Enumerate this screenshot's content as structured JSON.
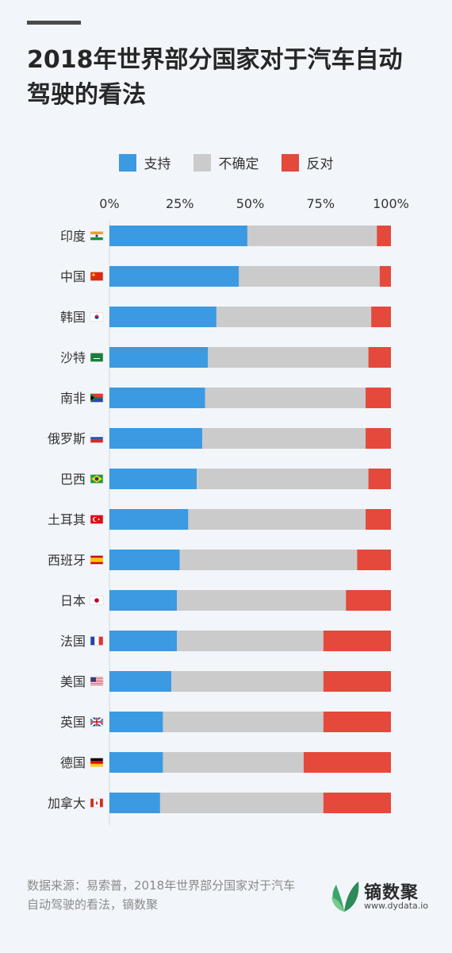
{
  "title": "2018年世界部分国家对于汽车自动驾驶的看法",
  "legend": [
    {
      "label": "支持",
      "color": "#3b9ae1"
    },
    {
      "label": "不确定",
      "color": "#cbcbcb"
    },
    {
      "label": "反对",
      "color": "#e4493c"
    }
  ],
  "chart_data": {
    "type": "bar",
    "orientation": "horizontal",
    "stacked": true,
    "x_ticks": [
      "0%",
      "25%",
      "50%",
      "75%",
      "100%"
    ],
    "xlim": [
      0,
      100
    ],
    "categories": [
      "印度",
      "中国",
      "韩国",
      "沙特",
      "南非",
      "俄罗斯",
      "巴西",
      "土耳其",
      "西班牙",
      "日本",
      "法国",
      "美国",
      "英国",
      "德国",
      "加拿大"
    ],
    "flags": [
      "india",
      "china",
      "korea",
      "saudi",
      "southafrica",
      "russia",
      "brazil",
      "turkey",
      "spain",
      "japan",
      "france",
      "usa",
      "uk",
      "germany",
      "canada"
    ],
    "series": [
      {
        "name": "支持",
        "color": "#3b9ae1",
        "values": [
          49,
          46,
          38,
          35,
          34,
          33,
          31,
          28,
          25,
          24,
          24,
          22,
          19,
          19,
          18
        ]
      },
      {
        "name": "不确定",
        "color": "#cbcbcb",
        "values": [
          46,
          50,
          55,
          57,
          57,
          58,
          61,
          63,
          63,
          60,
          52,
          54,
          57,
          50,
          58
        ]
      },
      {
        "name": "反对",
        "color": "#e4493c",
        "values": [
          5,
          4,
          7,
          8,
          9,
          9,
          8,
          9,
          12,
          16,
          24,
          24,
          24,
          31,
          24
        ]
      }
    ]
  },
  "source_text": "数据来源：易索普，2018年世界部分国家对于汽车自动驾驶的看法，镝数聚",
  "brand": {
    "name": "镝数聚",
    "url": "www.dydata.io"
  }
}
